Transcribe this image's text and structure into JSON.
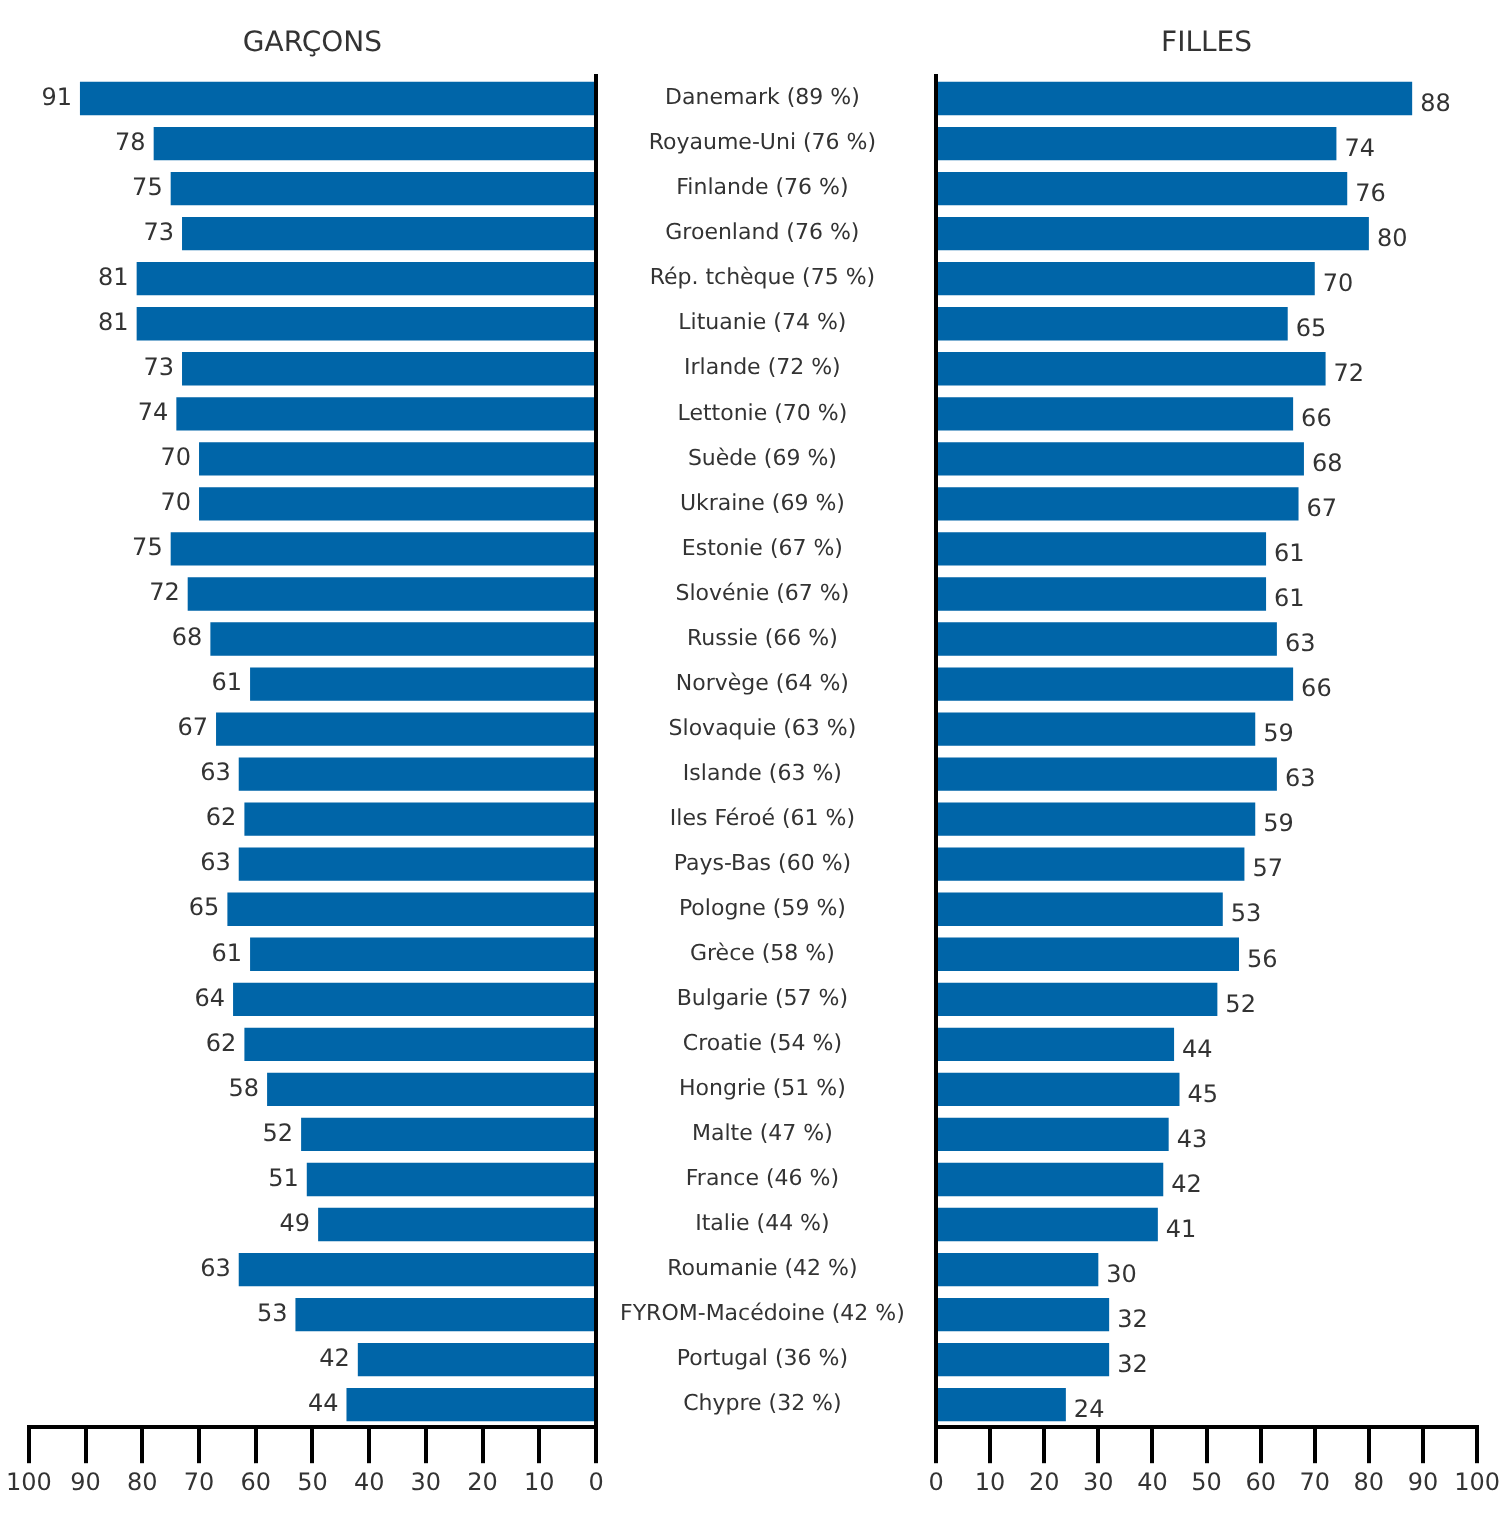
{
  "chart_data": [
    {
      "type": "bar",
      "orientation": "horizontal",
      "title": "GARÇONS",
      "categories": [
        "Danemark (89 %)",
        "Royaume-Uni (76 %)",
        "Finlande (76 %)",
        "Groenland (76 %)",
        "Rép. tchèque (75 %)",
        "Lituanie (74 %)",
        "Irlande (72 %)",
        "Lettonie (70 %)",
        "Suède (69 %)",
        "Ukraine (69 %)",
        "Estonie (67 %)",
        "Slovénie (67 %)",
        "Russie (66 %)",
        "Norvège (64 %)",
        "Slovaquie (63 %)",
        "Islande (63 %)",
        "Iles Féroé (61 %)",
        "Pays-Bas (60 %)",
        "Pologne (59 %)",
        "Grèce (58 %)",
        "Bulgarie (57 %)",
        "Croatie (54 %)",
        "Hongrie (51 %)",
        "Malte (47 %)",
        "France (46 %)",
        "Italie (44 %)",
        "Roumanie (42 %)",
        "FYROM-Macédoine (42 %)",
        "Portugal (36 %)",
        "Chypre (32 %)"
      ],
      "values": [
        91,
        78,
        75,
        73,
        81,
        81,
        73,
        74,
        70,
        70,
        75,
        72,
        68,
        61,
        67,
        63,
        62,
        63,
        65,
        61,
        64,
        62,
        58,
        52,
        51,
        49,
        63,
        53,
        42,
        44
      ],
      "color": "#0065a8",
      "xlim": [
        100,
        0
      ],
      "xticks": [
        100,
        90,
        80,
        70,
        60,
        50,
        40,
        30,
        20,
        10,
        0
      ],
      "data_labels": true,
      "grid": false,
      "legend": false
    },
    {
      "type": "bar",
      "orientation": "horizontal",
      "title": "FILLES",
      "values": [
        88,
        74,
        76,
        80,
        70,
        65,
        72,
        66,
        68,
        67,
        61,
        61,
        63,
        66,
        59,
        63,
        59,
        57,
        53,
        56,
        52,
        44,
        45,
        43,
        42,
        41,
        30,
        32,
        32,
        24
      ],
      "color": "#0065a8",
      "xlim": [
        0,
        100
      ],
      "xticks": [
        0,
        10,
        20,
        30,
        40,
        50,
        60,
        70,
        80,
        90,
        100
      ],
      "data_labels": true,
      "grid": false,
      "legend": false,
      "tick_labels": "x"
    }
  ]
}
